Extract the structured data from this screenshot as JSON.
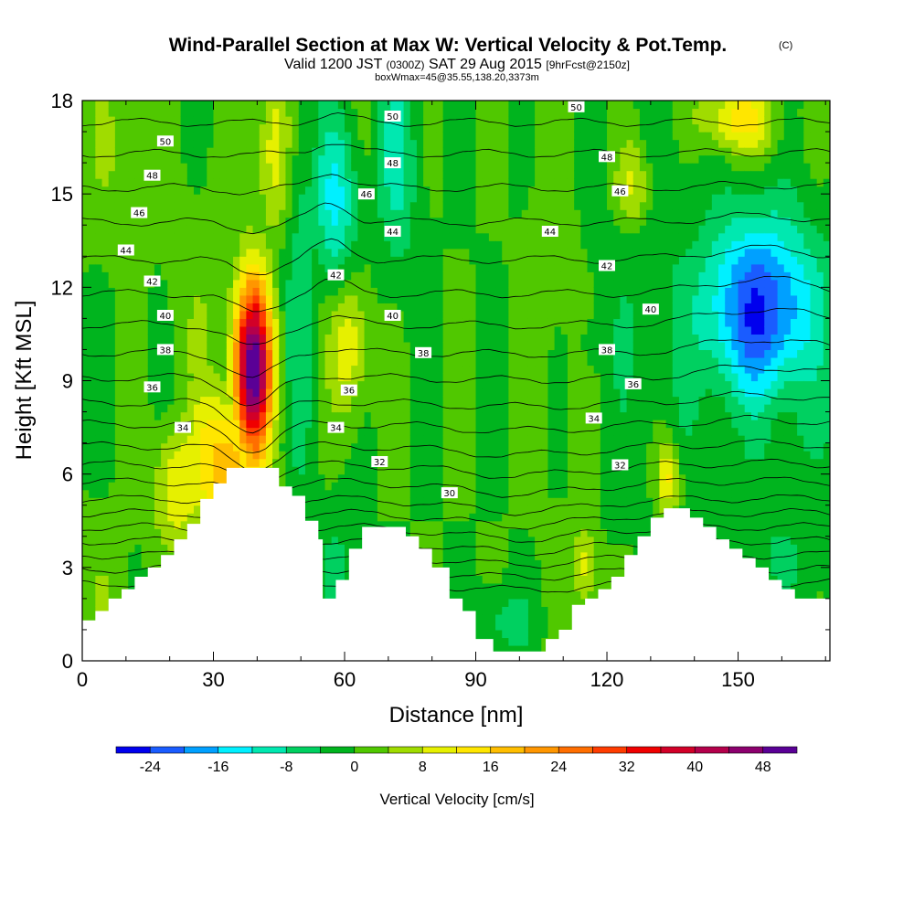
{
  "title": {
    "main": "Wind-Parallel Section at Max W: Vertical Velocity & Pot.Temp.",
    "copyright": "(C)",
    "valid_prefix": "Valid 1200 JST",
    "valid_utc": "(0300Z)",
    "valid_date": "SAT 29 Aug 2015",
    "forecast": "[9hrFcst@2150z]",
    "boxinfo": "boxWmax=45@35.55,138.20,3373m"
  },
  "chart_data": {
    "type": "heatmap",
    "x_axis": {
      "label": "Distance [nm]",
      "range": [
        0,
        171
      ],
      "ticks": [
        "0",
        "30",
        "60",
        "90",
        "120",
        "150"
      ],
      "tick_values": [
        0,
        30,
        60,
        90,
        120,
        150
      ]
    },
    "y_axis": {
      "label": "Height [Kft MSL]",
      "range": [
        0,
        18
      ],
      "ticks": [
        "0",
        "3",
        "6",
        "9",
        "12",
        "15",
        "18"
      ],
      "tick_values": [
        0,
        3,
        6,
        9,
        12,
        15,
        18
      ]
    },
    "colorbar": {
      "label": "Vertical Velocity [cm/s]",
      "ticks": [
        "-24",
        "-16",
        "-8",
        "0",
        "8",
        "16",
        "24",
        "32",
        "40",
        "48"
      ],
      "tick_values": [
        -24,
        -16,
        -8,
        0,
        8,
        16,
        24,
        32,
        40,
        48
      ],
      "levels": [
        -28,
        -24,
        -20,
        -16,
        -12,
        -8,
        -4,
        0,
        4,
        8,
        12,
        16,
        20,
        24,
        28,
        32,
        36,
        40,
        44,
        48,
        52
      ],
      "colors": [
        "#0000ee",
        "#1a5cff",
        "#00a0ff",
        "#00f0ff",
        "#00e8b0",
        "#00d060",
        "#00b41e",
        "#50c800",
        "#a0dc00",
        "#e6f000",
        "#ffe600",
        "#ffbe00",
        "#ff9600",
        "#ff6e00",
        "#ff3c00",
        "#f00000",
        "#d20028",
        "#b4004b",
        "#8c006e",
        "#5a0096"
      ]
    },
    "background_value": 0,
    "features": [
      {
        "x": 39,
        "y": 9.4,
        "sx": 3.0,
        "sy": 2.0,
        "value": 52
      },
      {
        "x": 33,
        "y": 6.3,
        "sx": 6.0,
        "sy": 1.8,
        "value": 19
      },
      {
        "x": 22,
        "y": 5.6,
        "sx": 4.0,
        "sy": 1.4,
        "value": 12
      },
      {
        "x": 155,
        "y": 11.3,
        "sx": 9.5,
        "sy": 2.1,
        "value": -24
      },
      {
        "x": 160,
        "y": 9.0,
        "sx": 12.0,
        "sy": 2.2,
        "value": -6
      },
      {
        "x": 140,
        "y": 11.4,
        "sx": 20.0,
        "sy": 4.0,
        "value": -4
      },
      {
        "x": 58,
        "y": 14.7,
        "sx": 3.5,
        "sy": 2.0,
        "value": -13
      },
      {
        "x": 72,
        "y": 16.0,
        "sx": 3.5,
        "sy": 2.4,
        "value": -9
      },
      {
        "x": 50,
        "y": 12.5,
        "sx": 3.0,
        "sy": 6.0,
        "value": -6
      },
      {
        "x": 61,
        "y": 10.2,
        "sx": 3.0,
        "sy": 1.6,
        "value": 12
      },
      {
        "x": 44,
        "y": 16.5,
        "sx": 2.8,
        "sy": 2.0,
        "value": 11
      },
      {
        "x": 150,
        "y": 17.4,
        "sx": 6.0,
        "sy": 0.8,
        "value": 15
      },
      {
        "x": 126,
        "y": 15.3,
        "sx": 3.0,
        "sy": 1.0,
        "value": 10
      },
      {
        "x": 134,
        "y": 5.9,
        "sx": 1.8,
        "sy": 0.8,
        "value": 14
      },
      {
        "x": 115,
        "y": 3.0,
        "sx": 2.0,
        "sy": 1.0,
        "value": 10
      },
      {
        "x": 108,
        "y": 11.5,
        "sx": 6.0,
        "sy": 4.0,
        "value": 3
      },
      {
        "x": 117,
        "y": 10.2,
        "sx": 2.5,
        "sy": 0.8,
        "value": -5
      },
      {
        "x": 95,
        "y": 1.3,
        "sx": 6.0,
        "sy": 0.7,
        "value": -6
      },
      {
        "x": 8,
        "y": 16.5,
        "sx": 5.0,
        "sy": 2.0,
        "value": 4
      },
      {
        "x": 58,
        "y": 2.8,
        "sx": 3.0,
        "sy": 1.5,
        "value": -5
      },
      {
        "x": 160,
        "y": 3.5,
        "sx": 8.0,
        "sy": 1.5,
        "value": -4
      },
      {
        "x": 28,
        "y": 11.0,
        "sx": 6.0,
        "sy": 3.0,
        "value": 3
      },
      {
        "x": 5,
        "y": 2.5,
        "sx": 4.0,
        "sy": 1.5,
        "value": 3
      }
    ],
    "terrain": [
      [
        0,
        1.3
      ],
      [
        3,
        1.3
      ],
      [
        3,
        1.6
      ],
      [
        6,
        1.6
      ],
      [
        6,
        2.0
      ],
      [
        9,
        2.0
      ],
      [
        9,
        2.3
      ],
      [
        12,
        2.3
      ],
      [
        12,
        2.7
      ],
      [
        15,
        2.7
      ],
      [
        15,
        3.0
      ],
      [
        18,
        3.0
      ],
      [
        18,
        3.4
      ],
      [
        21,
        3.4
      ],
      [
        21,
        3.9
      ],
      [
        24,
        3.9
      ],
      [
        24,
        4.4
      ],
      [
        27,
        4.4
      ],
      [
        27,
        5.2
      ],
      [
        30,
        5.2
      ],
      [
        30,
        5.7
      ],
      [
        33,
        5.7
      ],
      [
        33,
        6.2
      ],
      [
        45,
        6.2
      ],
      [
        45,
        5.6
      ],
      [
        48,
        5.6
      ],
      [
        48,
        5.3
      ],
      [
        51,
        5.3
      ],
      [
        51,
        4.5
      ],
      [
        54,
        4.5
      ],
      [
        54,
        3.9
      ],
      [
        55,
        3.9
      ],
      [
        55,
        2.0
      ],
      [
        58,
        2.0
      ],
      [
        58,
        2.6
      ],
      [
        61,
        2.6
      ],
      [
        61,
        3.6
      ],
      [
        64,
        3.6
      ],
      [
        64,
        4.3
      ],
      [
        74,
        4.3
      ],
      [
        74,
        4.0
      ],
      [
        77,
        4.0
      ],
      [
        77,
        3.6
      ],
      [
        80,
        3.6
      ],
      [
        80,
        3.0
      ],
      [
        84,
        3.0
      ],
      [
        84,
        2.0
      ],
      [
        87,
        2.0
      ],
      [
        87,
        1.6
      ],
      [
        90,
        1.6
      ],
      [
        90,
        0.7
      ],
      [
        94,
        0.7
      ],
      [
        94,
        0.3
      ],
      [
        106,
        0.3
      ],
      [
        106,
        0.7
      ],
      [
        109,
        0.7
      ],
      [
        109,
        1.0
      ],
      [
        112,
        1.0
      ],
      [
        112,
        1.8
      ],
      [
        115,
        1.8
      ],
      [
        115,
        2.0
      ],
      [
        118,
        2.0
      ],
      [
        118,
        2.3
      ],
      [
        121,
        2.3
      ],
      [
        121,
        2.7
      ],
      [
        124,
        2.7
      ],
      [
        124,
        3.4
      ],
      [
        127,
        3.4
      ],
      [
        127,
        4.0
      ],
      [
        130,
        4.0
      ],
      [
        130,
        4.6
      ],
      [
        133,
        4.6
      ],
      [
        133,
        4.9
      ],
      [
        139,
        4.9
      ],
      [
        139,
        4.6
      ],
      [
        142,
        4.6
      ],
      [
        142,
        4.3
      ],
      [
        145,
        4.3
      ],
      [
        145,
        3.9
      ],
      [
        148,
        3.9
      ],
      [
        148,
        3.6
      ],
      [
        151,
        3.6
      ],
      [
        151,
        3.3
      ],
      [
        154,
        3.3
      ],
      [
        154,
        3.0
      ],
      [
        157,
        3.0
      ],
      [
        157,
        2.6
      ],
      [
        160,
        2.6
      ],
      [
        160,
        2.3
      ],
      [
        163,
        2.3
      ],
      [
        163,
        2.0
      ],
      [
        168,
        2.0
      ],
      [
        168,
        2.0
      ],
      [
        171,
        2.0
      ]
    ],
    "isentropes": {
      "base_theta": 30,
      "step": 2,
      "base_heights": [
        5.2,
        5.75,
        6.3,
        6.9,
        7.6,
        8.3,
        9.1,
        9.9,
        10.8,
        11.8,
        12.9,
        14.1,
        15.2,
        16.3,
        17.3
      ],
      "count_extra_below": 6
    },
    "isentrope_labels": [
      {
        "text": "50",
        "x": 19,
        "y": 16.7
      },
      {
        "text": "48",
        "x": 16,
        "y": 15.6
      },
      {
        "text": "46",
        "x": 13,
        "y": 14.4
      },
      {
        "text": "44",
        "x": 10,
        "y": 13.2
      },
      {
        "text": "42",
        "x": 16,
        "y": 12.2
      },
      {
        "text": "40",
        "x": 19,
        "y": 11.1
      },
      {
        "text": "38",
        "x": 19,
        "y": 10.0
      },
      {
        "text": "36",
        "x": 16,
        "y": 8.8
      },
      {
        "text": "34",
        "x": 23,
        "y": 7.5
      },
      {
        "text": "50",
        "x": 71,
        "y": 17.5
      },
      {
        "text": "48",
        "x": 71,
        "y": 16.0
      },
      {
        "text": "46",
        "x": 65,
        "y": 15.0
      },
      {
        "text": "44",
        "x": 71,
        "y": 13.8
      },
      {
        "text": "42",
        "x": 58,
        "y": 12.4
      },
      {
        "text": "40",
        "x": 71,
        "y": 11.1
      },
      {
        "text": "38",
        "x": 78,
        "y": 9.9
      },
      {
        "text": "36",
        "x": 61,
        "y": 8.7
      },
      {
        "text": "34",
        "x": 58,
        "y": 7.5
      },
      {
        "text": "32",
        "x": 68,
        "y": 6.4
      },
      {
        "text": "30",
        "x": 84,
        "y": 5.4
      },
      {
        "text": "50",
        "x": 113,
        "y": 17.8
      },
      {
        "text": "48",
        "x": 120,
        "y": 16.2
      },
      {
        "text": "46",
        "x": 123,
        "y": 15.1
      },
      {
        "text": "44",
        "x": 107,
        "y": 13.8
      },
      {
        "text": "42",
        "x": 120,
        "y": 12.7
      },
      {
        "text": "40",
        "x": 130,
        "y": 11.3
      },
      {
        "text": "38",
        "x": 120,
        "y": 10.0
      },
      {
        "text": "36",
        "x": 126,
        "y": 8.9
      },
      {
        "text": "34",
        "x": 117,
        "y": 7.8
      },
      {
        "text": "32",
        "x": 123,
        "y": 6.3
      }
    ]
  }
}
